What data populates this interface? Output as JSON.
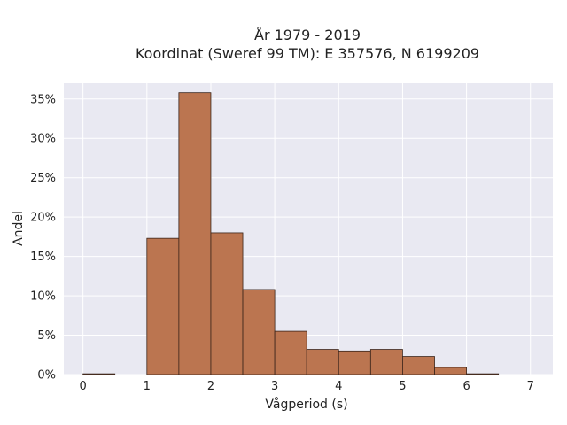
{
  "chart_data": {
    "type": "bar",
    "title": "År 1979 - 2019",
    "subtitle": "Koordinat (Sweref 99 TM): E 357576, N 6199209",
    "xlabel": "Vågperiod (s)",
    "ylabel": "Andel",
    "xlim": [
      -0.3,
      7.35
    ],
    "ylim": [
      0,
      0.37
    ],
    "x_ticks": [
      0,
      1,
      2,
      3,
      4,
      5,
      6,
      7
    ],
    "x_tick_labels": [
      "0",
      "1",
      "2",
      "3",
      "4",
      "5",
      "6",
      "7"
    ],
    "y_ticks": [
      0,
      0.05,
      0.1,
      0.15,
      0.2,
      0.25,
      0.3,
      0.35
    ],
    "y_tick_labels": [
      "0%",
      "5%",
      "10%",
      "15%",
      "20%",
      "25%",
      "30%",
      "35%"
    ],
    "bin_width": 0.5,
    "bins": [
      {
        "start": 0.0,
        "value": 0.001
      },
      {
        "start": 0.5,
        "value": 0.0
      },
      {
        "start": 1.0,
        "value": 0.173
      },
      {
        "start": 1.5,
        "value": 0.358
      },
      {
        "start": 2.0,
        "value": 0.18
      },
      {
        "start": 2.5,
        "value": 0.108
      },
      {
        "start": 3.0,
        "value": 0.055
      },
      {
        "start": 3.5,
        "value": 0.032
      },
      {
        "start": 4.0,
        "value": 0.03
      },
      {
        "start": 4.5,
        "value": 0.032
      },
      {
        "start": 5.0,
        "value": 0.023
      },
      {
        "start": 5.5,
        "value": 0.009
      },
      {
        "start": 6.0,
        "value": 0.001
      },
      {
        "start": 6.5,
        "value": 0.0
      }
    ],
    "grid": true,
    "colors": {
      "bar_fill": "#bb7550",
      "bar_edge": "#3a241a",
      "plot_background": "#e9e9f2",
      "grid": "#ffffff"
    }
  }
}
